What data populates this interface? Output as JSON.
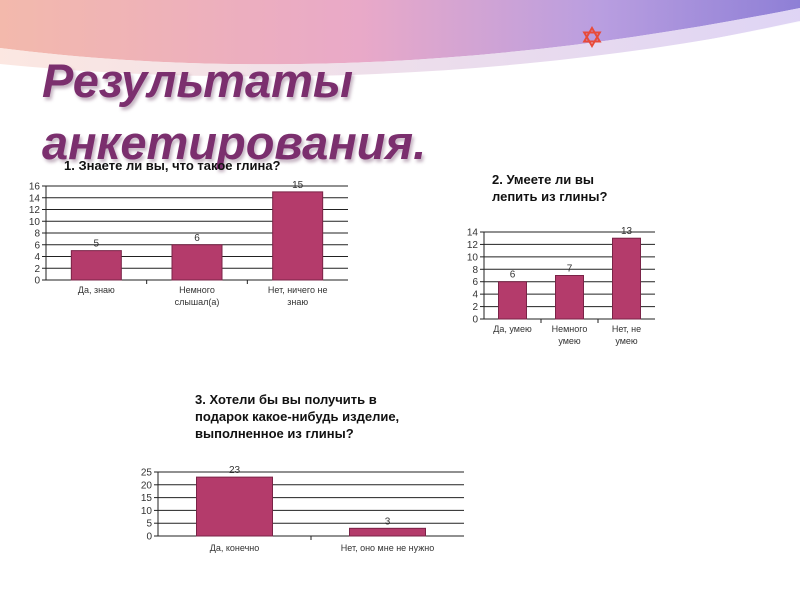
{
  "slide": {
    "title_lines": [
      "Результаты",
      "анкетирования."
    ],
    "accent_colors": {
      "bar": "#b43b6b",
      "title": "#7b2f6e",
      "star": "#e84b3a"
    }
  },
  "chart_data": [
    {
      "type": "bar",
      "title_lines": [
        "1. Знаете ли вы, что такое глина?"
      ],
      "xlabel": "",
      "ylabel": "",
      "categories": [
        [
          "Да, знаю"
        ],
        [
          "Немного",
          "слышал(а)"
        ],
        [
          "Нет, ничего не",
          "знаю"
        ]
      ],
      "values": [
        5,
        6,
        15
      ],
      "data_labels": [
        "5",
        "6",
        "15"
      ],
      "ylim": [
        0,
        16
      ],
      "yticks": [
        0,
        2,
        4,
        6,
        8,
        10,
        12,
        14,
        16
      ],
      "grid": true,
      "legend": "none"
    },
    {
      "type": "bar",
      "title_lines": [
        "2. Умеете ли вы",
        "лепить из глины?"
      ],
      "xlabel": "",
      "ylabel": "",
      "categories": [
        [
          "Да, умею"
        ],
        [
          "Немного",
          "умею"
        ],
        [
          "Нет, не",
          "умею"
        ]
      ],
      "values": [
        6,
        7,
        13
      ],
      "data_labels": [
        "6",
        "7",
        "13"
      ],
      "ylim": [
        0,
        14
      ],
      "yticks": [
        0,
        2,
        4,
        6,
        8,
        10,
        12,
        14
      ],
      "grid": true,
      "legend": "none"
    },
    {
      "type": "bar",
      "title_lines": [
        "3. Хотели бы вы получить в",
        "подарок какое-нибудь изделие,",
        "выполненное из глины?"
      ],
      "xlabel": "",
      "ylabel": "",
      "categories": [
        [
          "Да, конечно"
        ],
        [
          "Нет, оно мне не нужно"
        ]
      ],
      "values": [
        23,
        3
      ],
      "data_labels": [
        "23",
        "3"
      ],
      "ylim": [
        0,
        25
      ],
      "yticks": [
        0,
        5,
        10,
        15,
        20,
        25
      ],
      "grid": true,
      "legend": "none"
    }
  ]
}
